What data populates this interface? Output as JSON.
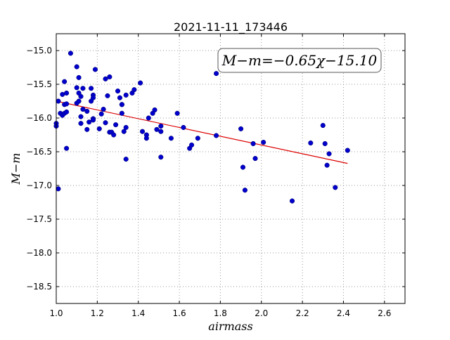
{
  "chart_data": {
    "type": "scatter",
    "title": "2021-11-11_173446",
    "xlabel": "airmass",
    "ylabel": "M−m",
    "xlim": [
      1.0,
      2.7
    ],
    "ylim": [
      -18.75,
      -14.75
    ],
    "y_inverted": true,
    "grid": true,
    "grid_style": "dotted",
    "xticks": [
      1.0,
      1.2,
      1.4,
      1.6,
      1.8,
      2.0,
      2.2,
      2.4,
      2.6
    ],
    "xtick_labels": [
      "1.0",
      "1.2",
      "1.4",
      "1.6",
      "1.8",
      "2.0",
      "2.2",
      "2.4",
      "2.6"
    ],
    "yticks": [
      -15.0,
      -15.5,
      -16.0,
      -16.5,
      -17.0,
      -17.5,
      -18.0,
      -18.5
    ],
    "ytick_labels": [
      "−15.0",
      "−15.5",
      "−16.0",
      "−16.5",
      "−17.0",
      "−17.5",
      "−18.0",
      "−18.5"
    ],
    "annotation": "M−m=−0.65χ−15.10",
    "annotation_placement": "top-right",
    "fit": {
      "slope": -0.65,
      "intercept": -15.1,
      "x_range": [
        1.0,
        2.42
      ]
    },
    "colors": {
      "points": "#0000cc",
      "fit_line": "#dd0000",
      "grid": "#999999"
    },
    "points": [
      [
        1.0,
        -16.08
      ],
      [
        1.0,
        -16.12
      ],
      [
        1.01,
        -15.75
      ],
      [
        1.01,
        -17.05
      ],
      [
        1.02,
        -15.93
      ],
      [
        1.03,
        -15.65
      ],
      [
        1.03,
        -15.96
      ],
      [
        1.04,
        -15.46
      ],
      [
        1.04,
        -15.93
      ],
      [
        1.04,
        -15.8
      ],
      [
        1.05,
        -15.63
      ],
      [
        1.05,
        -15.91
      ],
      [
        1.05,
        -15.79
      ],
      [
        1.05,
        -16.45
      ],
      [
        1.07,
        -15.04
      ],
      [
        1.1,
        -15.55
      ],
      [
        1.1,
        -15.78
      ],
      [
        1.1,
        -15.24
      ],
      [
        1.11,
        -15.4
      ],
      [
        1.11,
        -15.63
      ],
      [
        1.11,
        -15.75
      ],
      [
        1.12,
        -15.68
      ],
      [
        1.12,
        -15.98
      ],
      [
        1.12,
        -16.08
      ],
      [
        1.13,
        -15.56
      ],
      [
        1.13,
        -15.87
      ],
      [
        1.15,
        -15.9
      ],
      [
        1.15,
        -16.17
      ],
      [
        1.16,
        -16.06
      ],
      [
        1.17,
        -15.56
      ],
      [
        1.17,
        -15.75
      ],
      [
        1.18,
        -15.66
      ],
      [
        1.18,
        -15.7
      ],
      [
        1.18,
        -16.01
      ],
      [
        1.18,
        -16.03
      ],
      [
        1.19,
        -15.28
      ],
      [
        1.21,
        -16.16
      ],
      [
        1.22,
        -15.94
      ],
      [
        1.23,
        -15.87
      ],
      [
        1.24,
        -15.42
      ],
      [
        1.24,
        -16.07
      ],
      [
        1.25,
        -15.67
      ],
      [
        1.26,
        -15.39
      ],
      [
        1.26,
        -16.21
      ],
      [
        1.27,
        -16.21
      ],
      [
        1.28,
        -16.25
      ],
      [
        1.29,
        -16.1
      ],
      [
        1.3,
        -15.6
      ],
      [
        1.31,
        -15.7
      ],
      [
        1.32,
        -15.8
      ],
      [
        1.32,
        -15.8
      ],
      [
        1.32,
        -15.93
      ],
      [
        1.33,
        -16.2
      ],
      [
        1.34,
        -15.66
      ],
      [
        1.34,
        -16.14
      ],
      [
        1.34,
        -16.61
      ],
      [
        1.37,
        -15.63
      ],
      [
        1.38,
        -15.58
      ],
      [
        1.41,
        -15.48
      ],
      [
        1.42,
        -16.2
      ],
      [
        1.44,
        -16.25
      ],
      [
        1.44,
        -16.3
      ],
      [
        1.45,
        -16.0
      ],
      [
        1.47,
        -15.93
      ],
      [
        1.48,
        -15.88
      ],
      [
        1.49,
        -16.17
      ],
      [
        1.51,
        -16.12
      ],
      [
        1.51,
        -16.2
      ],
      [
        1.51,
        -16.58
      ],
      [
        1.56,
        -16.3
      ],
      [
        1.59,
        -15.93
      ],
      [
        1.62,
        -16.14
      ],
      [
        1.65,
        -16.45
      ],
      [
        1.66,
        -16.4
      ],
      [
        1.69,
        -16.3
      ],
      [
        1.78,
        -15.34
      ],
      [
        1.78,
        -16.26
      ],
      [
        1.9,
        -16.16
      ],
      [
        1.91,
        -16.73
      ],
      [
        1.92,
        -17.07
      ],
      [
        1.96,
        -16.38
      ],
      [
        1.97,
        -16.6
      ],
      [
        2.01,
        -16.36
      ],
      [
        2.15,
        -17.23
      ],
      [
        2.24,
        -16.37
      ],
      [
        2.3,
        -16.11
      ],
      [
        2.31,
        -16.38
      ],
      [
        2.32,
        -16.7
      ],
      [
        2.33,
        -16.53
      ],
      [
        2.36,
        -17.03
      ],
      [
        2.42,
        -16.48
      ]
    ]
  }
}
